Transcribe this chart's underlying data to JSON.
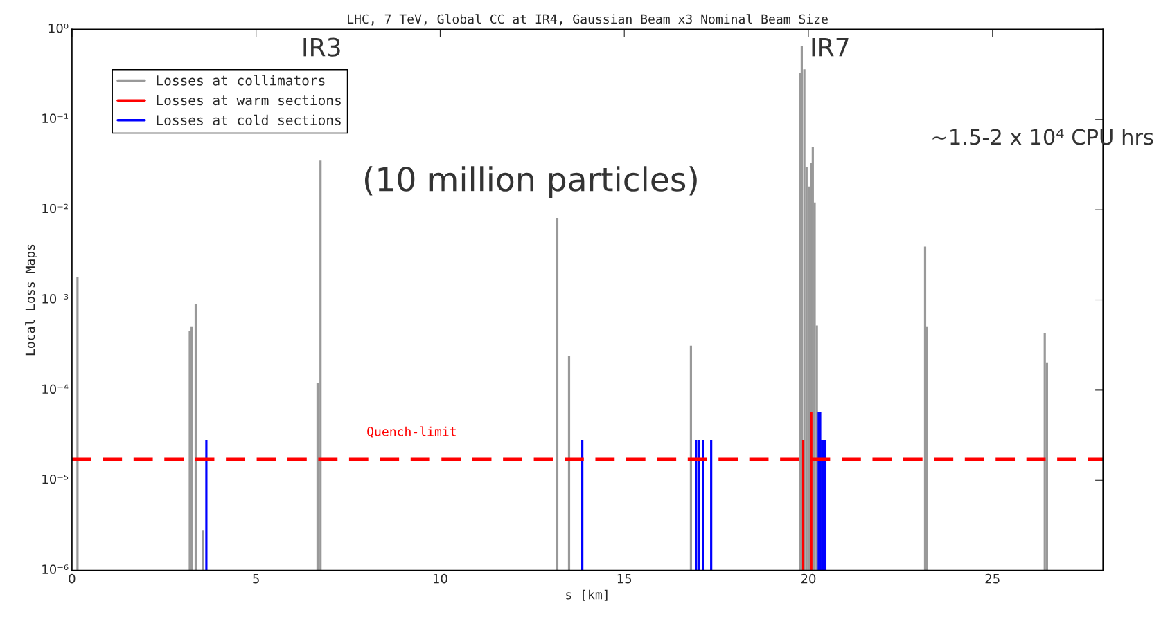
{
  "chart_data": {
    "type": "bar",
    "title": "LHC, 7 TeV, Global CC at IR4, Gaussian Beam x3 Nominal Beam Size",
    "xlabel": "s [km]",
    "ylabel": "Local Loss Maps",
    "log": "y",
    "xlim": [
      0,
      28
    ],
    "xticks": [
      0,
      5,
      10,
      15,
      20,
      25
    ],
    "ylim": [
      1e-06,
      1
    ],
    "yticks": [
      {
        "value": 1e-06,
        "label": "10⁻⁶"
      },
      {
        "value": 1e-05,
        "label": "10⁻⁵"
      },
      {
        "value": 0.0001,
        "label": "10⁻⁴"
      },
      {
        "value": 0.001,
        "label": "10⁻³"
      },
      {
        "value": 0.01,
        "label": "10⁻²"
      },
      {
        "value": 0.1,
        "label": "10⁻¹"
      },
      {
        "value": 1,
        "label": "10⁰"
      }
    ],
    "grid": false,
    "legend": "top left",
    "series": [
      {
        "name": "Losses at collimators",
        "color": "#999999",
        "x": [
          0.15,
          3.2,
          3.25,
          3.36,
          3.55,
          6.67,
          6.75,
          13.18,
          13.5,
          16.81,
          19.77,
          19.82,
          19.89,
          19.95,
          20.01,
          20.07,
          20.12,
          20.17,
          20.23,
          23.17,
          23.21,
          26.42,
          26.48
        ],
        "values": [
          0.0018,
          0.00045,
          0.0005,
          0.0009,
          2.8e-06,
          0.00012,
          0.035,
          0.0081,
          0.00024,
          0.00031,
          0.33,
          0.65,
          0.36,
          0.03,
          0.018,
          0.033,
          0.05,
          0.012,
          0.00052,
          0.0039,
          0.0005,
          0.00043,
          0.0002
        ]
      },
      {
        "name": "Losses at warm sections",
        "color": "#ff0000",
        "x": [
          19.86,
          20.08
        ],
        "values": [
          2.8e-05,
          5.7e-05
        ]
      },
      {
        "name": "Losses at cold sections",
        "color": "#0000ff",
        "x": [
          3.65,
          13.86,
          16.95,
          17.02,
          17.14,
          17.36,
          20.28,
          20.32,
          20.37,
          20.42,
          20.46
        ],
        "values": [
          2.8e-05,
          2.8e-05,
          2.8e-05,
          2.8e-05,
          2.8e-05,
          2.8e-05,
          5.7e-05,
          5.7e-05,
          2.8e-05,
          2.8e-05,
          2.8e-05
        ]
      }
    ],
    "ref_lines": [
      {
        "axis": "y",
        "value": 1.7e-05,
        "label": "Quench-limit",
        "color": "#ff0000",
        "line_style": "dashed"
      }
    ],
    "annotations": [
      "IR3",
      "IR7",
      "(10 million particles)",
      "∼1.5-2 x 10⁴ CPU hrs"
    ]
  }
}
